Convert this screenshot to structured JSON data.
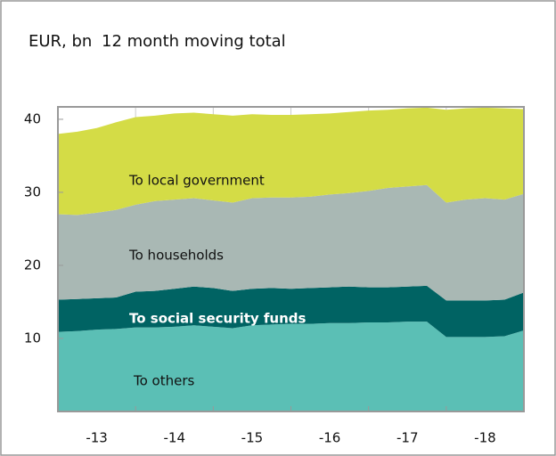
{
  "chart_data": {
    "type": "stacked_area",
    "title": "EUR, bn",
    "subtitle": "12 month moving total",
    "x": [
      2013.0,
      2013.25,
      2013.5,
      2013.75,
      2014.0,
      2014.25,
      2014.5,
      2014.75,
      2015.0,
      2015.25,
      2015.5,
      2015.75,
      2016.0,
      2016.25,
      2016.5,
      2016.75,
      2017.0,
      2017.25,
      2017.5,
      2017.75,
      2018.0,
      2018.25,
      2018.5,
      2018.75,
      2019.0
    ],
    "xlim": [
      2013,
      2019
    ],
    "xticks": [
      2014,
      2015,
      2016,
      2017,
      2018
    ],
    "xtick_labels": [
      {
        "value": 2013.5,
        "label": "-13"
      },
      {
        "value": 2014.5,
        "label": "-14"
      },
      {
        "value": 2015.5,
        "label": "-15"
      },
      {
        "value": 2016.5,
        "label": "-16"
      },
      {
        "value": 2017.5,
        "label": "-17"
      },
      {
        "value": 2018.5,
        "label": "-18"
      }
    ],
    "ylim": [
      0,
      41.7
    ],
    "yticks": [
      10,
      20,
      30,
      40
    ],
    "series": [
      {
        "name": "To others",
        "color": "#5bbfb5",
        "values": [
          10.9,
          11.0,
          11.2,
          11.3,
          11.5,
          11.5,
          11.6,
          11.8,
          11.6,
          11.4,
          11.8,
          11.9,
          12.0,
          12.0,
          12.1,
          12.1,
          12.2,
          12.2,
          12.3,
          12.3,
          10.2,
          10.2,
          10.2,
          10.3,
          11.1
        ]
      },
      {
        "name": "To households",
        "color": "#006363",
        "values": [
          4.4,
          4.4,
          4.3,
          4.3,
          4.9,
          5.0,
          5.2,
          5.3,
          5.3,
          5.1,
          5.0,
          5.0,
          4.8,
          4.9,
          4.9,
          5.0,
          4.8,
          4.8,
          4.8,
          4.9,
          5.0,
          5.0,
          5.0,
          5.0,
          5.2
        ]
      },
      {
        "name": "To social security funds",
        "color": "#a9b8b4",
        "values": [
          11.7,
          11.5,
          11.7,
          12.0,
          11.9,
          12.3,
          12.2,
          12.1,
          12.0,
          12.1,
          12.4,
          12.4,
          12.5,
          12.5,
          12.7,
          12.8,
          13.2,
          13.6,
          13.7,
          13.8,
          13.4,
          13.8,
          14.0,
          13.7,
          13.5
        ]
      },
      {
        "name": "To local government",
        "color": "#d4dc46",
        "values": [
          11.0,
          11.4,
          11.6,
          12.0,
          12.0,
          11.7,
          11.8,
          11.7,
          11.8,
          11.9,
          11.5,
          11.3,
          11.3,
          11.3,
          11.1,
          11.1,
          11.0,
          10.7,
          10.7,
          10.6,
          12.7,
          12.5,
          12.4,
          12.5,
          11.6
        ]
      }
    ]
  }
}
